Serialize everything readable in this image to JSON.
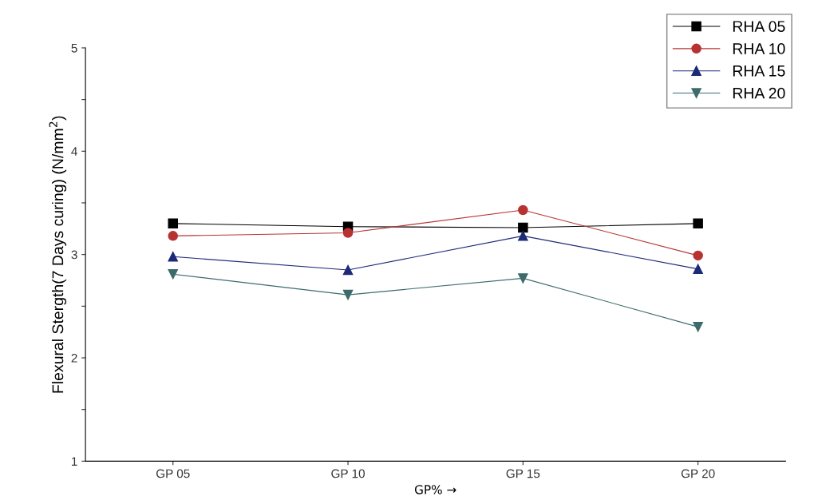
{
  "chart_data": {
    "type": "line",
    "ylabel": "Flexural Stergth(7 Days curing) (N/mm$^{2}$)",
    "xlabel": "GP% →",
    "categories": [
      "GP 05",
      "GP 10",
      "GP 15",
      "GP 20"
    ],
    "series": [
      {
        "name": "RHA 05",
        "color": "#000000",
        "marker": "square",
        "values": [
          3.3,
          3.27,
          3.26,
          3.3
        ]
      },
      {
        "name": "RHA 10",
        "color": "#b83232",
        "marker": "circle",
        "values": [
          3.18,
          3.21,
          3.43,
          2.99
        ]
      },
      {
        "name": "RHA 15",
        "color": "#1c2a78",
        "marker": "triangle",
        "values": [
          2.98,
          2.85,
          3.18,
          2.86
        ]
      },
      {
        "name": "RHA 20",
        "color": "#3d6b6b",
        "marker": "triangle_down",
        "values": [
          2.81,
          2.61,
          2.77,
          2.3
        ]
      }
    ],
    "ylim": [
      1,
      5
    ],
    "yticks": [
      1,
      {
        "value": 1.5,
        "label": null
      },
      2,
      {
        "value": 2.5,
        "label": null
      },
      3,
      {
        "value": 3.5,
        "label": null
      },
      4,
      {
        "value": 4.5,
        "label": null
      },
      5
    ],
    "grid": false,
    "legend": "top right",
    "line_style": "solid"
  }
}
